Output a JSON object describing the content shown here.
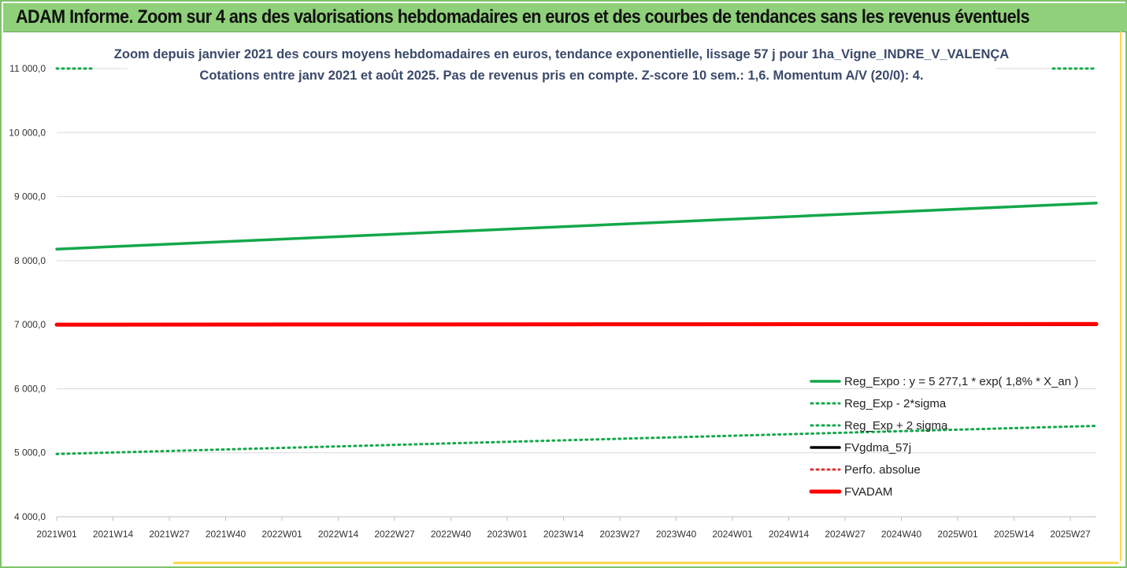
{
  "banner": {
    "title": "ADAM Informe. Zoom sur 4 ans des valorisations hebdomadaires en euros et des courbes de tendances sans les revenus éventuels"
  },
  "colors": {
    "banner_bg": "#8fd07a",
    "trend_green": "#13a84a",
    "fvadam_red": "#ff0000",
    "perfo_red": "#e03030",
    "fvgdma_black": "#000000"
  },
  "chart_data": {
    "type": "line",
    "title": "Zoom depuis janvier 2021 des cours moyens hebdomadaires en euros, tendance exponentielle, lissage 57 j pour 1ha_Vigne_INDRE_V_VALENÇA",
    "subtitle": "Cotations entre janv 2021 et août 2025.  Pas de revenus pris en compte. Z-score 10 sem.: 1,6. Momentum A/V (20/0): 4.",
    "xlabel": "",
    "ylabel": "",
    "ylim": [
      4000,
      11000
    ],
    "yticks": [
      "11 000,0",
      "10 000,0",
      "9 000,0",
      "8 000,0",
      "7 000,0",
      "6 000,0",
      "5 000,0",
      "4 000,0"
    ],
    "ytick_values": [
      11000,
      10000,
      9000,
      8000,
      7000,
      6000,
      5000,
      4000
    ],
    "x_ticks": [
      "2021W01",
      "2021W14",
      "2021W27",
      "2021W40",
      "2022W01",
      "2022W14",
      "2022W27",
      "2022W40",
      "2023W01",
      "2023W14",
      "2023W27",
      "2023W40",
      "2024W01",
      "2024W14",
      "2024W27",
      "2024W40",
      "2025W01",
      "2025W14",
      "2025W27"
    ],
    "grid": true,
    "legend_position": "bottom-right",
    "series": [
      {
        "name": "Reg_Expo : y = 5 277,1 * exp( 1,8% *  X_an )",
        "style": "solid",
        "color": "#13a84a",
        "x": [
          "2021W01",
          "2025W33"
        ],
        "y": [
          8180,
          8900
        ]
      },
      {
        "name": "Reg_Exp - 2*sigma",
        "style": "dotted",
        "color": "#13a84a",
        "x": [
          "2021W01",
          "2025W33"
        ],
        "y": [
          4980,
          5420
        ]
      },
      {
        "name": "Reg_Exp + 2 sigma",
        "style": "dotted",
        "color": "#13a84a",
        "x": [
          "2021W01",
          "2021W09",
          "2025W23",
          "2025W33"
        ],
        "y": [
          11000,
          11000,
          11000,
          11000
        ]
      },
      {
        "name": "FVgdma_57j",
        "style": "solid",
        "color": "#000000",
        "x": [
          "2021W01",
          "2025W33"
        ],
        "y": [
          7000,
          7000
        ]
      },
      {
        "name": "Perfo. absolue",
        "style": "dotted",
        "color": "#e03030",
        "x": [],
        "y": []
      },
      {
        "name": "FVADAM",
        "style": "solid",
        "color": "#ff0000",
        "x": [
          "2021W01",
          "2025W33"
        ],
        "y": [
          7000,
          7010
        ]
      }
    ]
  }
}
